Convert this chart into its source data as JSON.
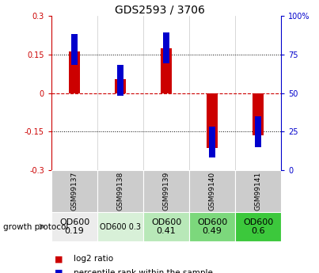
{
  "title": "GDS2593 / 3706",
  "samples": [
    "GSM99137",
    "GSM99138",
    "GSM99139",
    "GSM99140",
    "GSM99141"
  ],
  "log2_ratios": [
    0.163,
    0.055,
    0.175,
    -0.215,
    -0.165
  ],
  "percentile_rank_values": [
    78,
    58,
    79,
    18,
    25
  ],
  "ylim_left": [
    -0.3,
    0.3
  ],
  "ylim_right": [
    0,
    100
  ],
  "yticks_left": [
    -0.3,
    -0.15,
    0,
    0.15,
    0.3
  ],
  "yticks_right": [
    0,
    25,
    50,
    75,
    100
  ],
  "bar_color_red": "#cc0000",
  "bar_color_blue": "#0000cc",
  "zero_line_color": "#cc0000",
  "dotted_color": "black",
  "growth_protocol_labels": [
    "OD600\n0.19",
    "OD600 0.3",
    "OD600\n0.41",
    "OD600\n0.49",
    "OD600\n0.6"
  ],
  "growth_protocol_colors": [
    "#ececec",
    "#d8f0d8",
    "#b8e8b8",
    "#7cd87c",
    "#3cc83c"
  ],
  "growth_protocol_text_sizes": [
    8,
    7,
    8,
    8,
    8
  ],
  "bar_width": 0.25,
  "blue_marker_size": 0.12,
  "grid_color": "#c8c8c8",
  "plot_bg": "#ffffff",
  "left_tick_color": "#cc0000",
  "right_tick_color": "#0000cc",
  "legend_red_label": "log2 ratio",
  "legend_blue_label": "percentile rank within the sample",
  "gsm_bg_color": "#cccccc",
  "fig_width": 4.03,
  "fig_height": 3.45,
  "fig_dpi": 100
}
